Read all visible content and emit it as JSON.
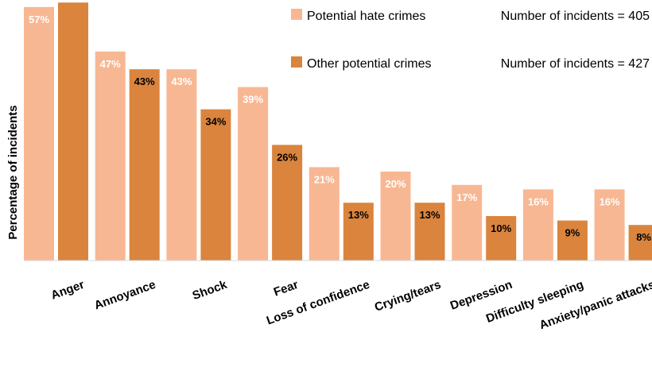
{
  "chart_data": {
    "type": "bar",
    "ylabel": "Percentage of incidents",
    "categories": [
      "Anger",
      "Annoyance",
      "Shock",
      "Fear",
      "Loss of confidence",
      "Crying/tears",
      "Depression",
      "Difficulty sleeping",
      "Anxiety/panic attacks"
    ],
    "series": [
      {
        "name": "Potential hate crimes",
        "legend_note": "Number of incidents = 405",
        "color": "#F8B793",
        "label_color": "#ffffff",
        "values": [
          57,
          47,
          43,
          39,
          21,
          20,
          17,
          16,
          16
        ],
        "labels": [
          "57%",
          "47%",
          "43%",
          "39%",
          "21%",
          "20%",
          "17%",
          "16%",
          "16%"
        ]
      },
      {
        "name": "Other potential crimes",
        "legend_note": "Number of incidents = 427",
        "color": "#DA843E",
        "label_color": "#000000",
        "values": [
          58,
          43,
          34,
          26,
          13,
          13,
          10,
          9,
          8
        ],
        "labels": [
          "",
          "43%",
          "34%",
          "26%",
          "13%",
          "13%",
          "10%",
          "9%",
          "8%"
        ]
      }
    ],
    "ylim": [
      0,
      57
    ],
    "grid": false,
    "legend_position": "top-right"
  }
}
